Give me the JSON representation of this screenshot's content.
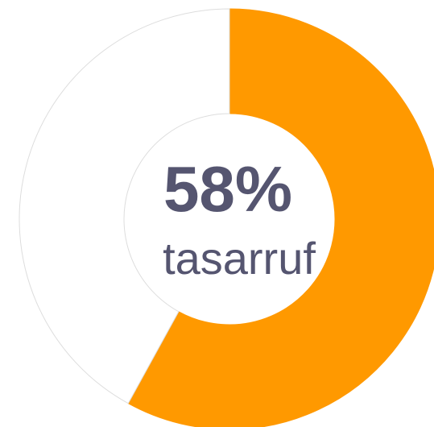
{
  "chart_data": {
    "type": "donut",
    "values": [
      58,
      42
    ],
    "value_labels": [
      "58%",
      null
    ],
    "colors": [
      "#ff9900",
      "#ffffff"
    ],
    "label": "tasarruf"
  }
}
